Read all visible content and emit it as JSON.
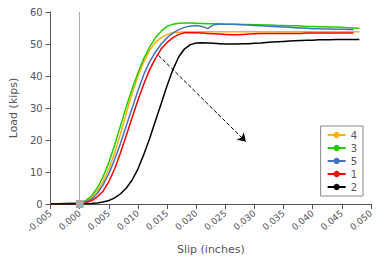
{
  "chart_data": {
    "type": "line",
    "xlabel": "Slip (inches)",
    "ylabel": "Load (kips)",
    "xlim": [
      -0.005,
      0.05
    ],
    "ylim": [
      0,
      60
    ],
    "xticks": [
      -0.005,
      {
        "value": 0.0,
        "label": "0.000"
      },
      0.005,
      {
        "value": 0.01,
        "label": "0.010"
      },
      0.015,
      {
        "value": 0.02,
        "label": "0.020"
      },
      0.025,
      {
        "value": 0.03,
        "label": "0.030"
      },
      0.035,
      {
        "value": 0.04,
        "label": "0.040"
      },
      0.045,
      {
        "value": 0.05,
        "label": "0.050"
      }
    ],
    "yticks": [
      0,
      10,
      20,
      30,
      40,
      50,
      60
    ],
    "grid": false,
    "legend": "lower right",
    "reference_lines": [
      {
        "x": 0.0,
        "color": "#AAAAAA"
      }
    ],
    "arrows": [
      {
        "x1": 0.0135,
        "y1": 46.5,
        "x2": 0.0285,
        "y2": 19.5,
        "color": "#000000",
        "line_style": "dashed"
      }
    ],
    "series": [
      {
        "name": "4",
        "color": "#FFB300",
        "x": [
          -0.005,
          0.0,
          0.001,
          0.002,
          0.003,
          0.004,
          0.005,
          0.006,
          0.007,
          0.008,
          0.009,
          0.01,
          0.011,
          0.012,
          0.013,
          0.014,
          0.015,
          0.016,
          0.017,
          0.018,
          0.019,
          0.02,
          0.021,
          0.022,
          0.023,
          0.024,
          0.025,
          0.026,
          0.027,
          0.028,
          0.029,
          0.03,
          0.031,
          0.032,
          0.033,
          0.034,
          0.035,
          0.036,
          0.037,
          0.038,
          0.039,
          0.04,
          0.041,
          0.042,
          0.043,
          0.044,
          0.045,
          0.046,
          0.047,
          0.048
        ],
        "values": [
          0.0,
          0.3,
          0.8,
          2.0,
          4.0,
          7.0,
          11.0,
          16.0,
          22.0,
          28.5,
          34.5,
          40.0,
          44.5,
          48.0,
          50.5,
          52.0,
          53.0,
          53.5,
          53.7,
          53.8,
          53.8,
          53.8,
          53.8,
          53.8,
          53.8,
          53.8,
          53.8,
          53.8,
          53.8,
          53.8,
          53.8,
          53.8,
          53.8,
          53.8,
          53.8,
          53.8,
          53.8,
          53.8,
          53.8,
          53.8,
          53.8,
          53.8,
          53.8,
          53.8,
          53.8,
          53.8,
          53.8,
          53.8,
          53.8,
          53.8
        ]
      },
      {
        "name": "3",
        "color": "#22CC00",
        "x": [
          -0.005,
          0.0,
          0.001,
          0.002,
          0.003,
          0.004,
          0.005,
          0.006,
          0.007,
          0.008,
          0.009,
          0.01,
          0.011,
          0.012,
          0.013,
          0.014,
          0.015,
          0.016,
          0.017,
          0.018,
          0.019,
          0.02,
          0.021,
          0.022,
          0.023,
          0.024,
          0.025,
          0.026,
          0.027,
          0.028,
          0.029,
          0.03,
          0.031,
          0.032,
          0.033,
          0.034,
          0.035,
          0.036,
          0.037,
          0.038,
          0.039,
          0.04,
          0.041,
          0.042,
          0.043,
          0.044,
          0.045,
          0.046,
          0.047,
          0.048
        ],
        "values": [
          0.0,
          0.3,
          1.0,
          2.5,
          5.0,
          8.5,
          13.0,
          18.5,
          24.5,
          30.5,
          36.0,
          41.0,
          45.5,
          49.0,
          52.0,
          54.0,
          55.5,
          56.2,
          56.5,
          56.6,
          56.6,
          56.5,
          56.4,
          56.3,
          56.3,
          56.3,
          56.2,
          56.2,
          56.2,
          56.1,
          56.1,
          56.0,
          56.0,
          55.9,
          55.9,
          55.8,
          55.8,
          55.7,
          55.7,
          55.6,
          55.5,
          55.5,
          55.4,
          55.4,
          55.3,
          55.3,
          55.2,
          55.1,
          55.0,
          54.9
        ]
      },
      {
        "name": "5",
        "color": "#4472C4",
        "x": [
          -0.005,
          0.0,
          0.001,
          0.002,
          0.003,
          0.004,
          0.005,
          0.006,
          0.007,
          0.008,
          0.009,
          0.01,
          0.011,
          0.012,
          0.013,
          0.014,
          0.015,
          0.016,
          0.017,
          0.018,
          0.019,
          0.02,
          0.021,
          0.022,
          0.0225,
          0.023,
          0.024,
          0.025,
          0.026,
          0.027,
          0.028,
          0.029,
          0.03,
          0.031,
          0.032,
          0.033,
          0.034,
          0.035,
          0.036,
          0.037,
          0.038,
          0.039,
          0.04,
          0.041,
          0.042,
          0.043,
          0.044,
          0.045,
          0.046,
          0.047
        ],
        "values": [
          0.0,
          0.2,
          0.6,
          1.5,
          3.2,
          6.0,
          9.5,
          14.0,
          19.0,
          24.5,
          30.0,
          35.5,
          40.5,
          44.5,
          47.5,
          50.0,
          52.0,
          53.5,
          54.5,
          55.2,
          55.6,
          55.8,
          55.5,
          54.8,
          55.5,
          56.0,
          56.2,
          56.2,
          56.2,
          56.1,
          56.0,
          55.9,
          55.8,
          55.7,
          55.6,
          55.5,
          55.4,
          55.3,
          55.2,
          55.1,
          55.0,
          54.9,
          54.8,
          54.8,
          54.7,
          54.7,
          54.6,
          54.6,
          54.5,
          54.5
        ]
      },
      {
        "name": "1",
        "color": "#FF0000",
        "x": [
          -0.005,
          0.0,
          0.001,
          0.002,
          0.003,
          0.004,
          0.005,
          0.006,
          0.007,
          0.008,
          0.009,
          0.01,
          0.011,
          0.012,
          0.013,
          0.014,
          0.015,
          0.016,
          0.017,
          0.018,
          0.019,
          0.02,
          0.021,
          0.022,
          0.023,
          0.024,
          0.025,
          0.026,
          0.027,
          0.028,
          0.029,
          0.03,
          0.031,
          0.032,
          0.033,
          0.034,
          0.035,
          0.036,
          0.037,
          0.038,
          0.039,
          0.04,
          0.041,
          0.042,
          0.043,
          0.044,
          0.045,
          0.046,
          0.047
        ],
        "values": [
          0.0,
          0.1,
          0.4,
          1.0,
          2.2,
          4.0,
          7.0,
          11.0,
          16.0,
          21.5,
          27.0,
          32.5,
          37.5,
          42.0,
          45.5,
          48.5,
          50.5,
          52.0,
          53.0,
          53.5,
          53.5,
          53.5,
          53.4,
          53.3,
          53.2,
          53.1,
          53.0,
          52.9,
          52.9,
          53.0,
          53.1,
          53.2,
          53.3,
          53.3,
          53.3,
          53.3,
          53.3,
          53.3,
          53.3,
          53.3,
          53.4,
          53.4,
          53.4,
          53.4,
          53.4,
          53.4,
          53.4,
          53.4,
          53.4
        ]
      },
      {
        "name": "2",
        "color": "#000000",
        "x": [
          -0.005,
          0.0,
          0.001,
          0.002,
          0.003,
          0.004,
          0.005,
          0.006,
          0.007,
          0.008,
          0.009,
          0.01,
          0.011,
          0.012,
          0.013,
          0.014,
          0.015,
          0.016,
          0.017,
          0.018,
          0.019,
          0.02,
          0.021,
          0.022,
          0.023,
          0.024,
          0.025,
          0.026,
          0.027,
          0.028,
          0.029,
          0.03,
          0.031,
          0.032,
          0.033,
          0.034,
          0.035,
          0.036,
          0.037,
          0.038,
          0.039,
          0.04,
          0.041,
          0.042,
          0.043,
          0.044,
          0.045,
          0.046,
          0.047,
          0.048
        ],
        "values": [
          0.0,
          0.0,
          0.05,
          0.15,
          0.3,
          0.6,
          1.1,
          1.9,
          3.2,
          5.0,
          7.5,
          11.0,
          15.5,
          20.5,
          26.0,
          31.5,
          37.0,
          42.0,
          46.0,
          48.5,
          49.8,
          50.3,
          50.4,
          50.3,
          50.2,
          50.1,
          50.0,
          50.0,
          50.0,
          50.1,
          50.1,
          50.2,
          50.3,
          50.5,
          50.6,
          50.7,
          50.8,
          50.9,
          51.0,
          51.1,
          51.2,
          51.2,
          51.3,
          51.3,
          51.3,
          51.4,
          51.4,
          51.4,
          51.4,
          51.4
        ]
      }
    ]
  }
}
